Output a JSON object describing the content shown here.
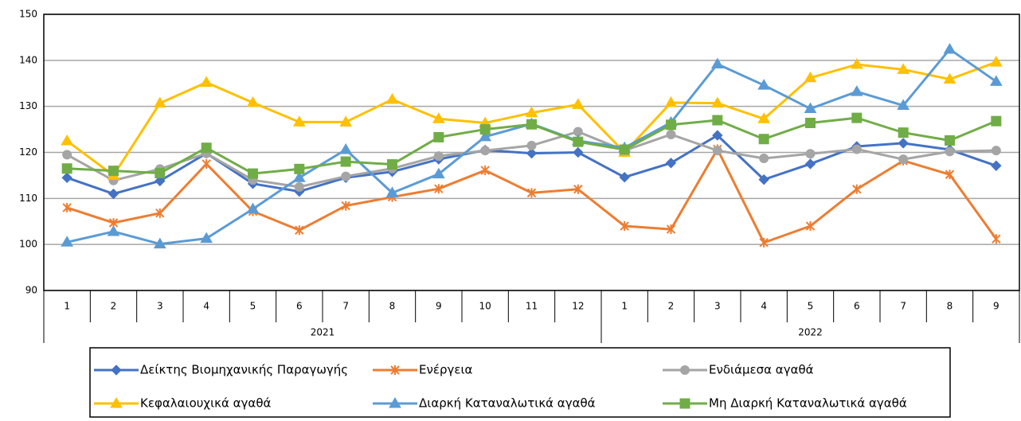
{
  "chart_data": {
    "type": "line",
    "category_groups": [
      {
        "name": "2021",
        "categories": [
          "1",
          "2",
          "3",
          "4",
          "5",
          "6",
          "7",
          "8",
          "9",
          "10",
          "11",
          "12"
        ]
      },
      {
        "name": "2022",
        "categories": [
          "1",
          "2",
          "3",
          "4",
          "5",
          "6",
          "7",
          "8",
          "9"
        ]
      }
    ],
    "ylim": [
      90,
      150
    ],
    "yticks": [
      90,
      100,
      110,
      120,
      130,
      140,
      150
    ],
    "grid": true,
    "series": [
      {
        "name": "Δείκτης Βιομηχανικής Παραγωγής",
        "color": "#4472c4",
        "marker": "diamond",
        "values": [
          114.5,
          111,
          113.8,
          119.8,
          113.2,
          111.5,
          114.5,
          115.8,
          118.5,
          120.5,
          119.8,
          120,
          114.6,
          117.7,
          123.7,
          114.1,
          117.5,
          121.3,
          122,
          120.6,
          117.1
        ]
      },
      {
        "name": "Ενέργεια",
        "color": "#ed7d31",
        "marker": "x",
        "values": [
          108,
          104.7,
          106.8,
          117.5,
          107.2,
          103.1,
          108.4,
          110.3,
          112.1,
          116.1,
          111.2,
          112,
          104,
          103.3,
          120.7,
          100.4,
          104,
          112,
          118.2,
          115.2,
          101.2
        ]
      },
      {
        "name": "Ενδιάμεσα αγαθά",
        "color": "#a5a5a5",
        "marker": "circle",
        "values": [
          119.5,
          113.9,
          116.4,
          119.8,
          114,
          112.5,
          114.8,
          116.5,
          119.2,
          120.4,
          121.5,
          124.5,
          120.4,
          123.9,
          120.4,
          118.7,
          119.7,
          120.7,
          118.5,
          120.2,
          120.4
        ]
      },
      {
        "name": "Κεφαλαιουχικά αγαθά",
        "color": "#ffc000",
        "marker": "triangle",
        "values": [
          122.5,
          115,
          130.7,
          135.2,
          130.8,
          126.6,
          126.6,
          131.5,
          127.3,
          126.4,
          128.6,
          130.4,
          120,
          130.8,
          130.7,
          127.3,
          136.2,
          139.1,
          138,
          135.9,
          139.6
        ]
      },
      {
        "name": "Διαρκή Καταναλωτικά αγαθά",
        "color": "#5b9bd5",
        "marker": "triangle",
        "values": [
          100.5,
          102.8,
          100.1,
          101.3,
          107.7,
          114.5,
          120.6,
          111.2,
          115.3,
          123.4,
          126.2,
          122.5,
          121,
          126.5,
          139.2,
          134.6,
          129.5,
          133.2,
          130.2,
          142.4,
          135.4
        ]
      },
      {
        "name": "Μη Διαρκή Καταναλωτικά αγαθά",
        "color": "#70ad47",
        "marker": "square",
        "values": [
          116.5,
          116,
          115.5,
          121,
          115.4,
          116.4,
          118,
          117.4,
          123.3,
          125,
          126.1,
          122.3,
          120.6,
          126,
          127,
          122.9,
          126.4,
          127.5,
          124.3,
          122.6,
          126.8
        ]
      }
    ]
  }
}
